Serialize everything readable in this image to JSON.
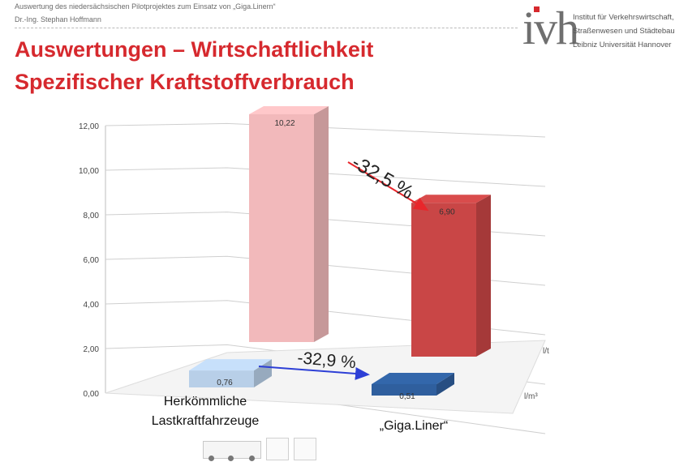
{
  "header": {
    "line1": "Auswertung des niedersächsischen Pilotprojektes zum Einsatz von „Giga.Linern“",
    "line2": "Dr.-Ing. Stephan Hoffmann"
  },
  "title": {
    "line1": "Auswertungen – Wirtschaftlichkeit",
    "line2": "Spezifischer Kraftstoffverbrauch"
  },
  "logo": {
    "mark": "ivh",
    "line1": "Institut für Verkehrswirtschaft,",
    "line2": "Straßenwesen und Städtebau",
    "line3": "Leibniz Universität Hannover"
  },
  "colors": {
    "title": "#d6292e",
    "bar_pink": "#f2b9bb",
    "bar_red": "#c94646",
    "bar_lightblue": "#b8cfe8",
    "bar_blue": "#2f5f9e",
    "arrow_red": "#e8262b",
    "arrow_blue": "#2d3fd6"
  },
  "chart_data": {
    "type": "bar",
    "categories": [
      "Herkömmliche Lastkraftfahrzeuge",
      "„Giga.Liner“"
    ],
    "category_lines": [
      [
        "Herkömmliche",
        "Lastkraftfahrzeuge"
      ],
      [
        "„Giga.Liner“"
      ]
    ],
    "series": [
      {
        "name": "l/t",
        "values": [
          10.22,
          6.9
        ],
        "labels": [
          "10,22",
          "6,90"
        ]
      },
      {
        "name": "l/m³",
        "values": [
          0.76,
          0.51
        ],
        "labels": [
          "0,76",
          "0,51"
        ]
      }
    ],
    "ylim": [
      0,
      12
    ],
    "yticks": [
      0,
      2,
      4,
      6,
      8,
      10,
      12
    ],
    "ytick_labels": [
      "0,00",
      "2,00",
      "4,00",
      "6,00",
      "8,00",
      "10,00",
      "12,00"
    ],
    "annotations": [
      {
        "text": "-32,5 %",
        "series": "l/t"
      },
      {
        "text": "-32,9 %",
        "series": "l/m³"
      }
    ],
    "grid": true,
    "projection": "3d"
  }
}
